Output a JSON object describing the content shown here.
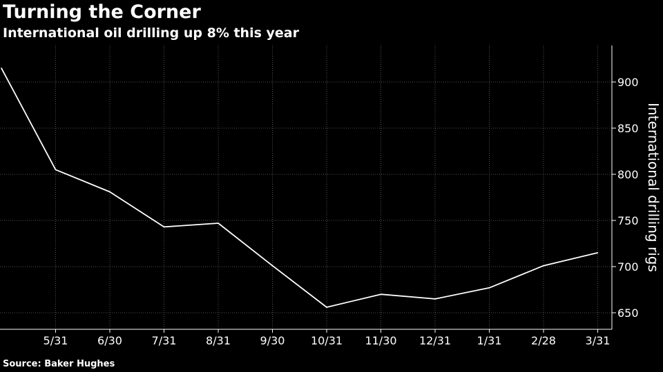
{
  "header": {
    "title": "Turning the Corner",
    "subtitle": "International oil drilling up 8% this year"
  },
  "footer": {
    "source": "Source: Baker Hughes"
  },
  "chart_data": {
    "type": "line",
    "title": "Turning the Corner",
    "subtitle": "International oil drilling up 8% this year",
    "xlabel": "",
    "ylabel": "International drilling rigs",
    "x": [
      "4/30",
      "5/31",
      "6/30",
      "7/31",
      "8/31",
      "9/30",
      "10/31",
      "11/30",
      "12/31",
      "1/31",
      "2/28",
      "3/31"
    ],
    "x_tick_labels": [
      "5/31",
      "6/30",
      "7/31",
      "8/31",
      "9/30",
      "10/31",
      "11/30",
      "12/31",
      "1/31",
      "2/28",
      "3/31"
    ],
    "series": [
      {
        "values": [
          915,
          805,
          781,
          743,
          747,
          701,
          656,
          670,
          665,
          677,
          701,
          715
        ]
      }
    ],
    "yticks": [
      650,
      700,
      750,
      800,
      850,
      900
    ],
    "ylim": [
      625,
      945
    ],
    "y_axis_side": "right",
    "grid": true,
    "legend": "none",
    "colors": {
      "background": "#000000",
      "line": "#ffffff",
      "grid": "#555555",
      "text": "#ffffff"
    },
    "source": "Source: Baker Hughes"
  }
}
